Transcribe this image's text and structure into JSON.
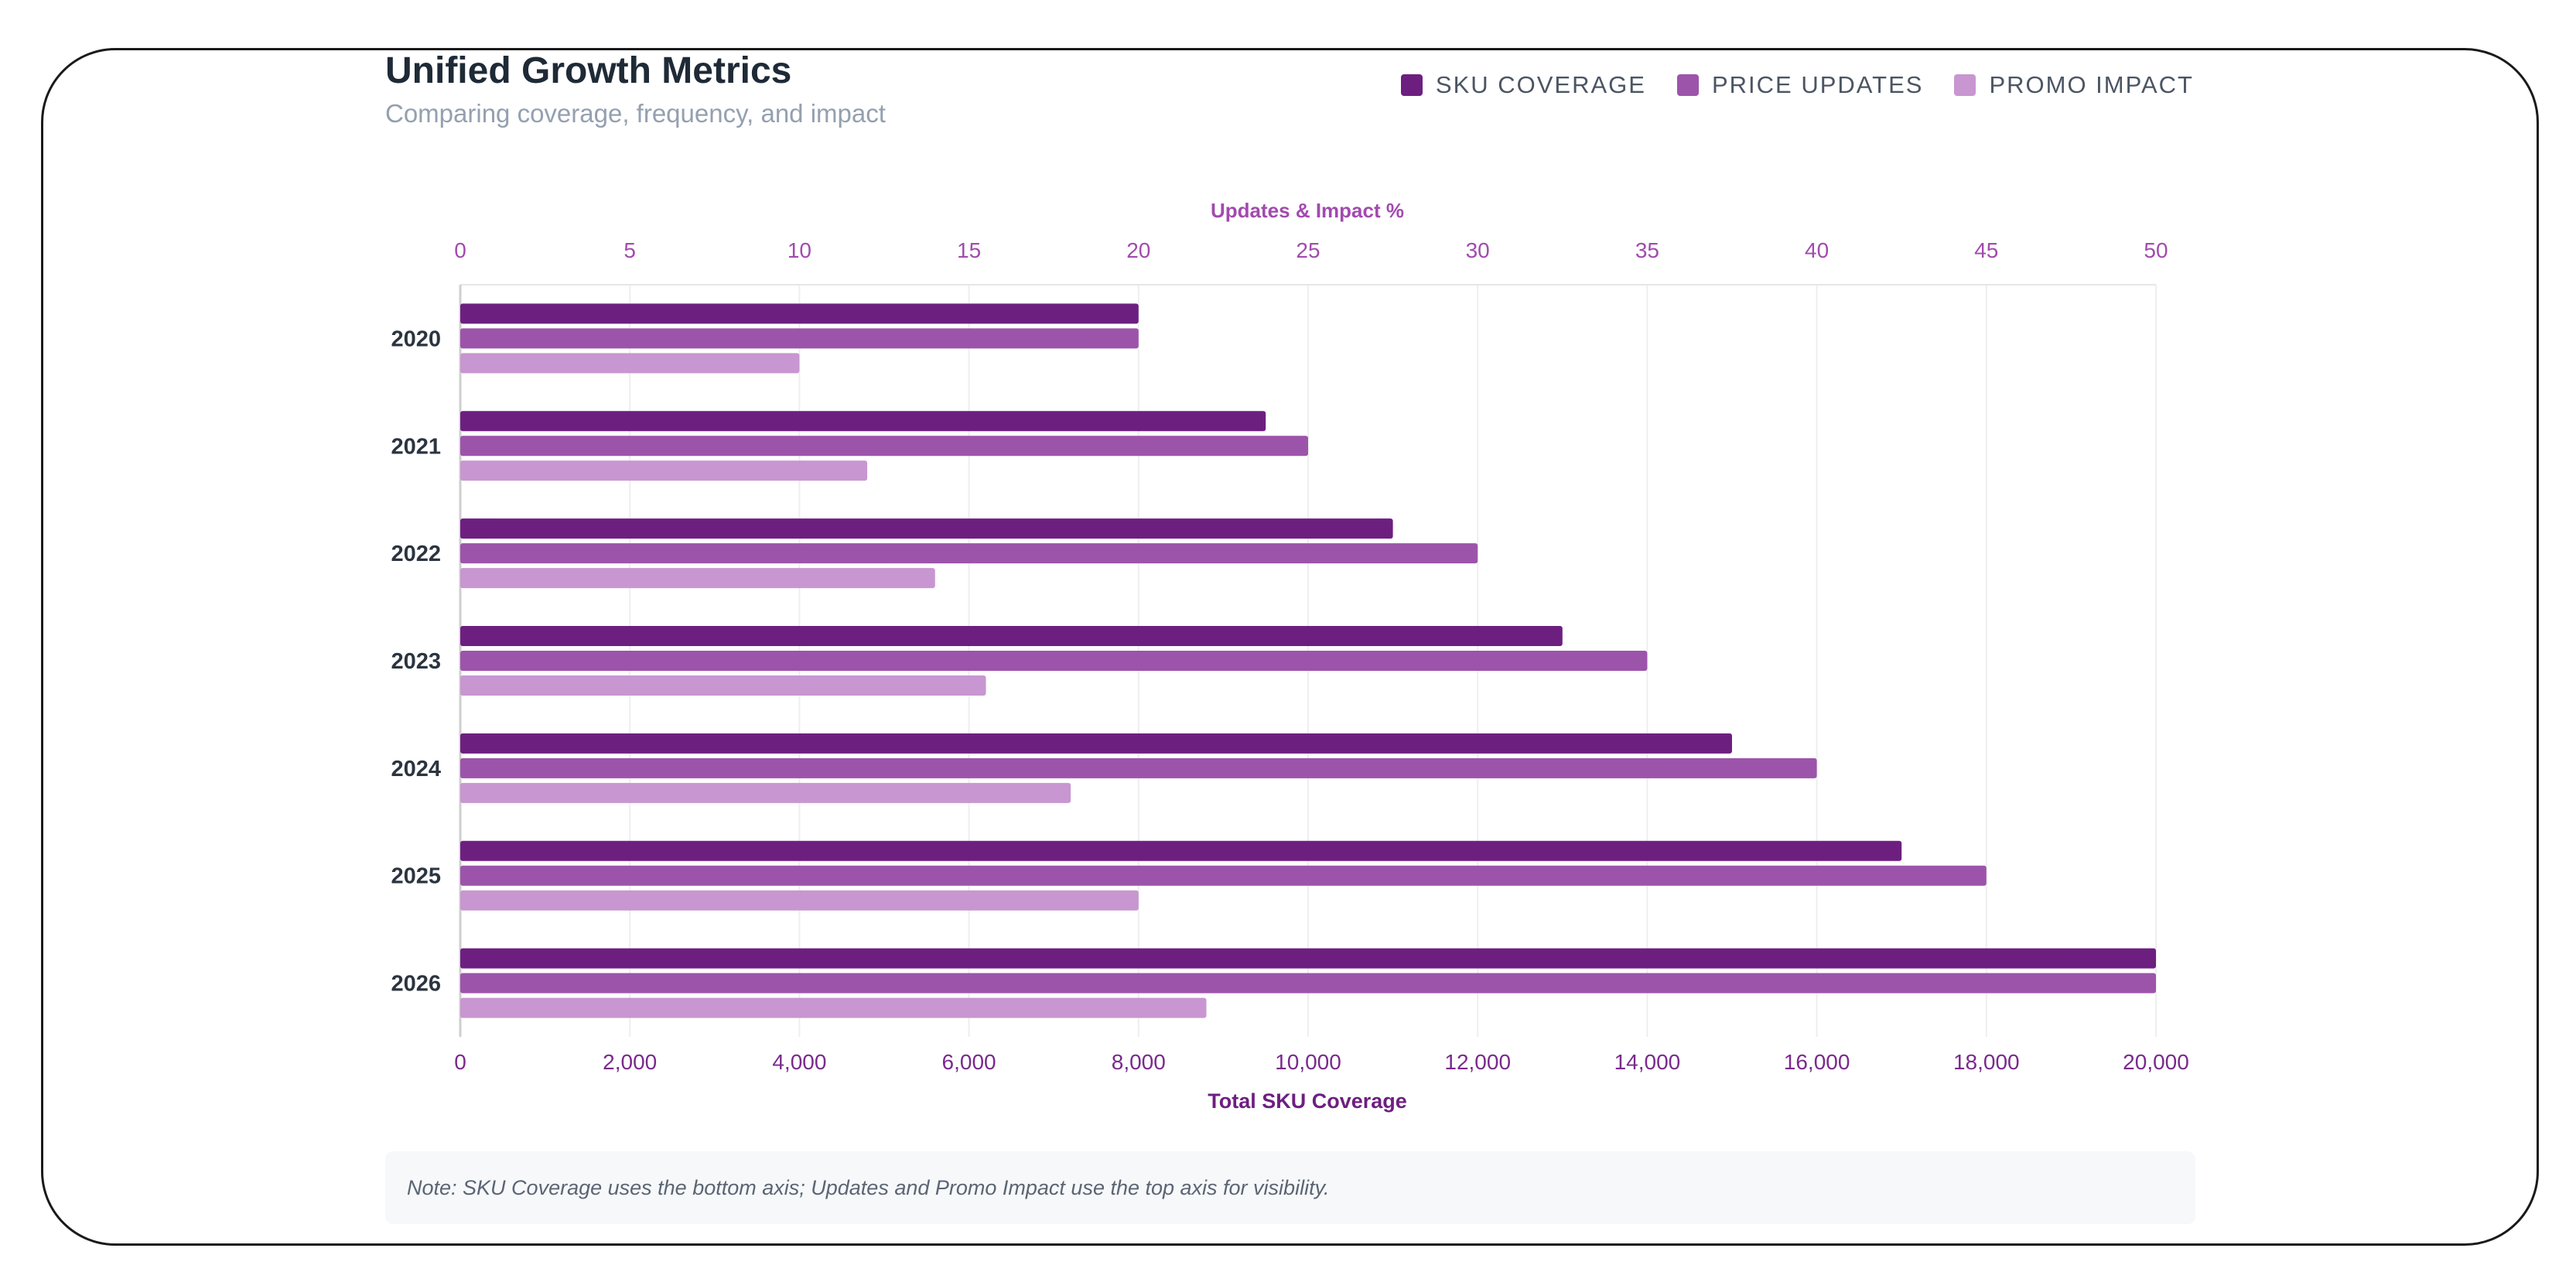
{
  "header": {
    "title": "Unified Growth Metrics",
    "subtitle": "Comparing coverage, frequency, and impact"
  },
  "legend": [
    {
      "label": "SKU COVERAGE",
      "color": "#6d1f80"
    },
    {
      "label": "PRICE UPDATES",
      "color": "#9c54aa"
    },
    {
      "label": "PROMO IMPACT",
      "color": "#c896d0"
    }
  ],
  "note": "Note: SKU Coverage uses the bottom axis; Updates and Promo Impact use the top axis for visibility.",
  "chart_data": {
    "type": "bar",
    "orientation": "horizontal",
    "categories": [
      "2020",
      "2021",
      "2022",
      "2023",
      "2024",
      "2025",
      "2026"
    ],
    "series": [
      {
        "name": "SKU COVERAGE",
        "axis": "bottom",
        "color": "#6d1f80",
        "values": [
          8000,
          9500,
          11000,
          13000,
          15000,
          17000,
          20000
        ]
      },
      {
        "name": "PRICE UPDATES",
        "axis": "top",
        "color": "#9c54aa",
        "values": [
          20,
          25,
          30,
          35,
          40,
          45,
          50
        ]
      },
      {
        "name": "PROMO IMPACT",
        "axis": "top",
        "color": "#c896d0",
        "values": [
          10,
          12,
          14,
          15.5,
          18,
          20,
          22
        ]
      }
    ],
    "bottom_axis": {
      "label": "Total SKU Coverage",
      "range": [
        0,
        20000
      ],
      "ticks": [
        "0",
        "2,000",
        "4,000",
        "6,000",
        "8,000",
        "10,000",
        "12,000",
        "14,000",
        "16,000",
        "18,000",
        "20,000"
      ]
    },
    "top_axis": {
      "label": "Updates & Impact %",
      "range": [
        0,
        50
      ],
      "ticks": [
        "0",
        "5",
        "10",
        "15",
        "20",
        "25",
        "30",
        "35",
        "40",
        "45",
        "50"
      ]
    },
    "grid": true,
    "legend_position": "top-right"
  }
}
